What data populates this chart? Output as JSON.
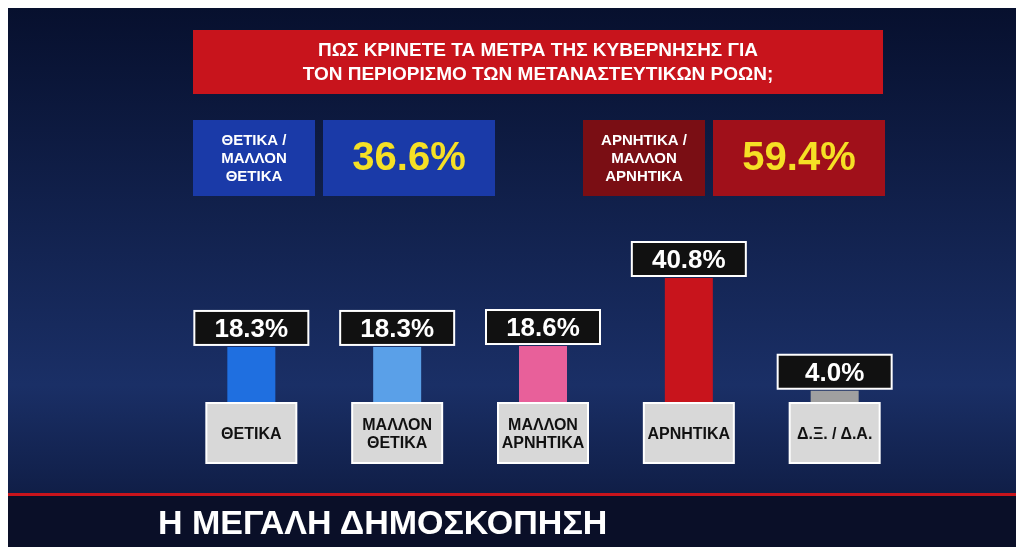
{
  "chart_data": {
    "type": "bar",
    "title": "ΠΩΣ ΚΡΙΝΕΤΕ ΤΑ ΜΕΤΡΑ ΤΗΣ ΚΥΒΕΡΝΗΣΗΣ ΓΙΑ ΤΟΝ ΠΕΡΙΟΡΙΣΜΟ ΤΩΝ ΜΕΤΑΝΑΣΤΕΥΤΙΚΩΝ ΡΟΩΝ;",
    "categories": [
      "ΘΕΤΙΚΑ",
      "ΜΑΛΛΟΝ ΘΕΤΙΚΑ",
      "ΜΑΛΛΟΝ ΑΡΝΗΤΙΚΑ",
      "ΑΡΝΗΤΙΚΑ",
      "Δ.Ξ. / Δ.Α."
    ],
    "values": [
      18.3,
      18.3,
      18.6,
      40.8,
      4.0
    ],
    "colors": [
      "#1f6fe0",
      "#5aa0e8",
      "#e8609a",
      "#c8141c",
      "#a0a0a0"
    ],
    "value_labels": [
      "18.3%",
      "18.3%",
      "18.6%",
      "40.8%",
      "4.0%"
    ],
    "annotations": [
      "ΘΕΤΙΚΑ / ΜΑΛΛΟΝ ΘΕΤΙΚΑ",
      "36.6%",
      "ΑΡΝΗΤΙΚΑ / ΜΑΛΛΟΝ ΑΡΝΗΤΙΚΑ",
      "59.4%",
      "Η ΜΕΓΑΛΗ ΔΗΜΟΣΚΟΠΗΣΗ"
    ]
  }
}
